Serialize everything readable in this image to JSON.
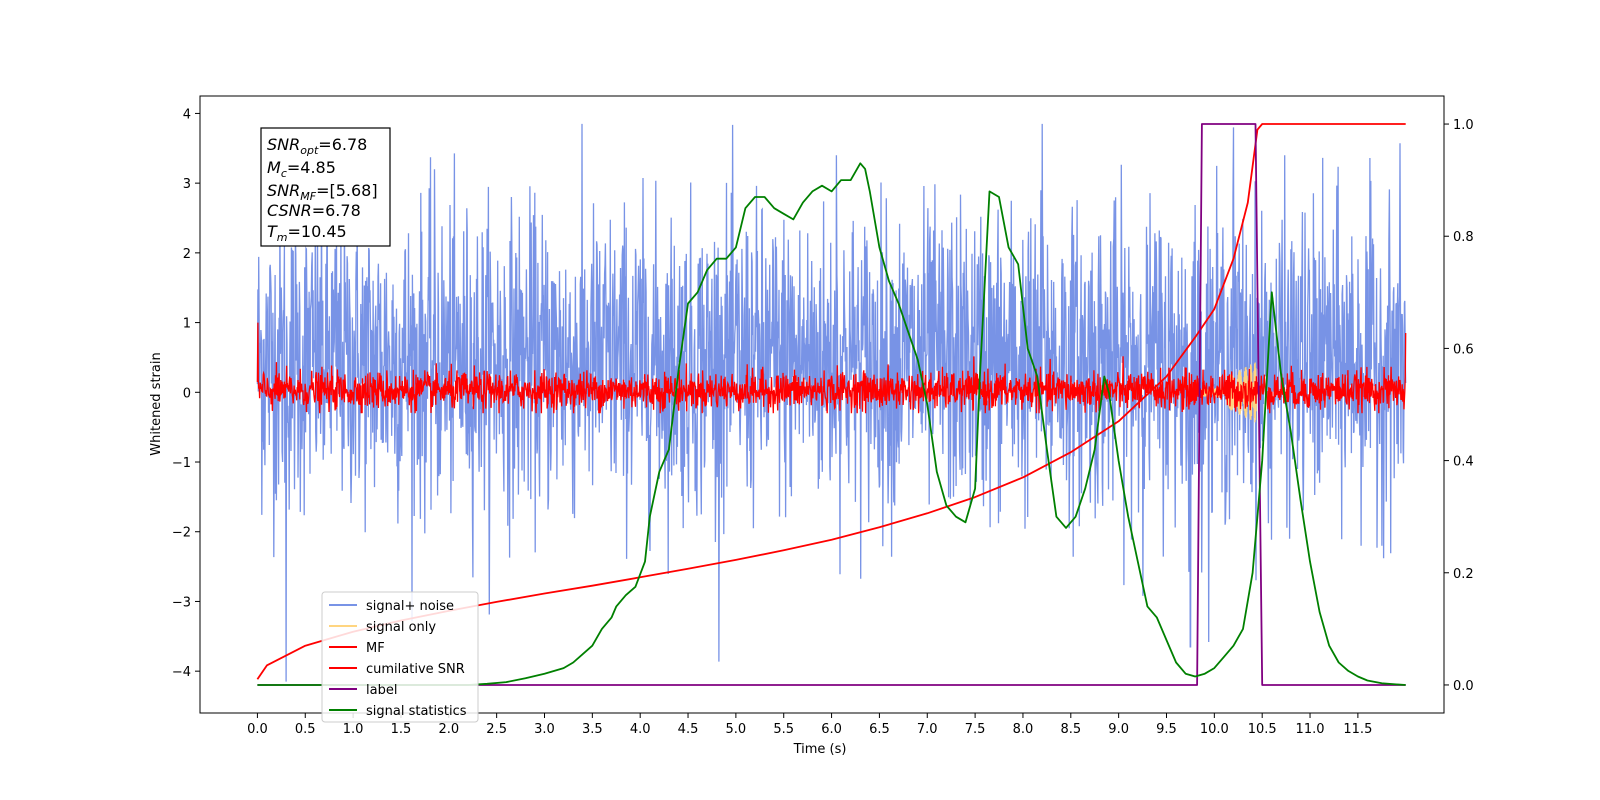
{
  "chart_data": {
    "type": "line",
    "xlabel": "Time (s)",
    "ylabel": "Whitened strain",
    "xlim": [
      -0.6,
      12.4
    ],
    "ylim": [
      -4.6,
      4.25
    ],
    "ylim_right": [
      -0.05,
      1.05
    ],
    "xticks": [
      "0.0",
      "0.5",
      "1.0",
      "1.5",
      "2.0",
      "2.5",
      "3.0",
      "3.5",
      "4.0",
      "4.5",
      "5.0",
      "5.5",
      "6.0",
      "6.5",
      "7.0",
      "7.5",
      "8.0",
      "8.5",
      "9.0",
      "9.5",
      "10.0",
      "10.5",
      "11.0",
      "11.5"
    ],
    "yticks": [
      "4",
      "3",
      "2",
      "1",
      "0",
      "−1",
      "−2",
      "−3",
      "−4"
    ],
    "yticks_right": [
      "1.0",
      "0.8",
      "0.6",
      "0.4",
      "0.2",
      "0.0"
    ],
    "legend_position": "lower-left",
    "grid": false,
    "info_box": {
      "snr_opt": "=6.78",
      "mc": "=4.85",
      "snr_mf": "=[5.68]",
      "csnr": "=6.78",
      "tm": "=10.45"
    },
    "series": [
      {
        "name": "signal+ noise",
        "axis": "left",
        "color": "#7893e6",
        "kind": "noise",
        "time_range": [
          0.0,
          12.0
        ],
        "envelope_typical": [
          -1.5,
          2.4
        ],
        "extremes": [
          -4.15,
          3.85
        ],
        "spikes": [
          [
            0.3,
            -4.15
          ],
          [
            8.2,
            3.85
          ],
          [
            10.2,
            3.8
          ],
          [
            9.75,
            -3.65
          ],
          [
            6.05,
            3.4
          ],
          [
            1.85,
            3.2
          ]
        ]
      },
      {
        "name": "signal only",
        "axis": "left",
        "color": "#ffd580",
        "kind": "chirp",
        "time_range": [
          9.8,
          10.45
        ],
        "amplitude": 0.45
      },
      {
        "name": "MF",
        "axis": "left",
        "color": "#ff0000",
        "kind": "noise",
        "time_range": [
          0.0,
          12.0
        ],
        "envelope_typical": [
          -0.25,
          0.3
        ],
        "extremes": [
          -0.3,
          0.6
        ]
      },
      {
        "name": "cumilative SNR",
        "axis": "right",
        "color": "#ff0000",
        "points": [
          [
            0.0,
            0.01
          ],
          [
            0.1,
            0.035
          ],
          [
            0.5,
            0.07
          ],
          [
            1.0,
            0.095
          ],
          [
            1.5,
            0.115
          ],
          [
            2.0,
            0.132
          ],
          [
            2.5,
            0.148
          ],
          [
            3.0,
            0.163
          ],
          [
            3.5,
            0.177
          ],
          [
            4.0,
            0.192
          ],
          [
            4.5,
            0.207
          ],
          [
            5.0,
            0.223
          ],
          [
            5.5,
            0.24
          ],
          [
            6.0,
            0.259
          ],
          [
            6.5,
            0.281
          ],
          [
            7.0,
            0.306
          ],
          [
            7.5,
            0.335
          ],
          [
            8.0,
            0.37
          ],
          [
            8.5,
            0.415
          ],
          [
            9.0,
            0.47
          ],
          [
            9.5,
            0.55
          ],
          [
            9.8,
            0.62
          ],
          [
            10.0,
            0.67
          ],
          [
            10.2,
            0.76
          ],
          [
            10.35,
            0.86
          ],
          [
            10.45,
            0.99
          ],
          [
            10.5,
            1.0
          ],
          [
            12.0,
            1.0
          ]
        ]
      },
      {
        "name": "label",
        "axis": "right",
        "color": "#800080",
        "points": [
          [
            0.0,
            0.0
          ],
          [
            9.82,
            0.0
          ],
          [
            9.87,
            1.0
          ],
          [
            10.43,
            1.0
          ],
          [
            10.5,
            0.0
          ],
          [
            12.0,
            0.0
          ]
        ]
      },
      {
        "name": "signal statistics",
        "axis": "right",
        "color": "#008000",
        "points": [
          [
            0.0,
            0.0
          ],
          [
            2.2,
            0.0
          ],
          [
            2.4,
            0.002
          ],
          [
            2.6,
            0.005
          ],
          [
            2.8,
            0.012
          ],
          [
            3.0,
            0.02
          ],
          [
            3.2,
            0.03
          ],
          [
            3.3,
            0.04
          ],
          [
            3.4,
            0.055
          ],
          [
            3.5,
            0.07
          ],
          [
            3.6,
            0.1
          ],
          [
            3.7,
            0.12
          ],
          [
            3.75,
            0.14
          ],
          [
            3.85,
            0.16
          ],
          [
            3.95,
            0.175
          ],
          [
            4.05,
            0.22
          ],
          [
            4.1,
            0.3
          ],
          [
            4.2,
            0.38
          ],
          [
            4.3,
            0.42
          ],
          [
            4.4,
            0.56
          ],
          [
            4.5,
            0.68
          ],
          [
            4.6,
            0.7
          ],
          [
            4.7,
            0.74
          ],
          [
            4.8,
            0.76
          ],
          [
            4.9,
            0.76
          ],
          [
            5.0,
            0.78
          ],
          [
            5.1,
            0.85
          ],
          [
            5.2,
            0.87
          ],
          [
            5.3,
            0.87
          ],
          [
            5.4,
            0.85
          ],
          [
            5.5,
            0.84
          ],
          [
            5.6,
            0.83
          ],
          [
            5.7,
            0.86
          ],
          [
            5.8,
            0.88
          ],
          [
            5.9,
            0.89
          ],
          [
            6.0,
            0.88
          ],
          [
            6.1,
            0.9
          ],
          [
            6.2,
            0.9
          ],
          [
            6.3,
            0.93
          ],
          [
            6.35,
            0.92
          ],
          [
            6.4,
            0.88
          ],
          [
            6.5,
            0.78
          ],
          [
            6.6,
            0.72
          ],
          [
            6.7,
            0.68
          ],
          [
            6.8,
            0.63
          ],
          [
            6.9,
            0.58
          ],
          [
            7.0,
            0.5
          ],
          [
            7.1,
            0.38
          ],
          [
            7.2,
            0.32
          ],
          [
            7.3,
            0.3
          ],
          [
            7.4,
            0.29
          ],
          [
            7.5,
            0.35
          ],
          [
            7.55,
            0.55
          ],
          [
            7.65,
            0.88
          ],
          [
            7.75,
            0.87
          ],
          [
            7.85,
            0.78
          ],
          [
            7.95,
            0.75
          ],
          [
            8.05,
            0.6
          ],
          [
            8.15,
            0.55
          ],
          [
            8.25,
            0.42
          ],
          [
            8.35,
            0.3
          ],
          [
            8.45,
            0.28
          ],
          [
            8.55,
            0.3
          ],
          [
            8.65,
            0.35
          ],
          [
            8.75,
            0.42
          ],
          [
            8.85,
            0.55
          ],
          [
            8.9,
            0.52
          ],
          [
            9.0,
            0.4
          ],
          [
            9.1,
            0.3
          ],
          [
            9.2,
            0.22
          ],
          [
            9.3,
            0.14
          ],
          [
            9.4,
            0.12
          ],
          [
            9.5,
            0.08
          ],
          [
            9.6,
            0.04
          ],
          [
            9.7,
            0.02
          ],
          [
            9.8,
            0.015
          ],
          [
            9.9,
            0.02
          ],
          [
            10.0,
            0.03
          ],
          [
            10.1,
            0.05
          ],
          [
            10.2,
            0.07
          ],
          [
            10.3,
            0.1
          ],
          [
            10.4,
            0.2
          ],
          [
            10.5,
            0.4
          ],
          [
            10.6,
            0.7
          ],
          [
            10.7,
            0.55
          ],
          [
            10.8,
            0.45
          ],
          [
            10.9,
            0.33
          ],
          [
            11.0,
            0.22
          ],
          [
            11.1,
            0.13
          ],
          [
            11.2,
            0.07
          ],
          [
            11.3,
            0.04
          ],
          [
            11.4,
            0.025
          ],
          [
            11.5,
            0.015
          ],
          [
            11.6,
            0.008
          ],
          [
            11.75,
            0.003
          ],
          [
            11.9,
            0.001
          ],
          [
            12.0,
            0.0
          ]
        ]
      }
    ]
  }
}
